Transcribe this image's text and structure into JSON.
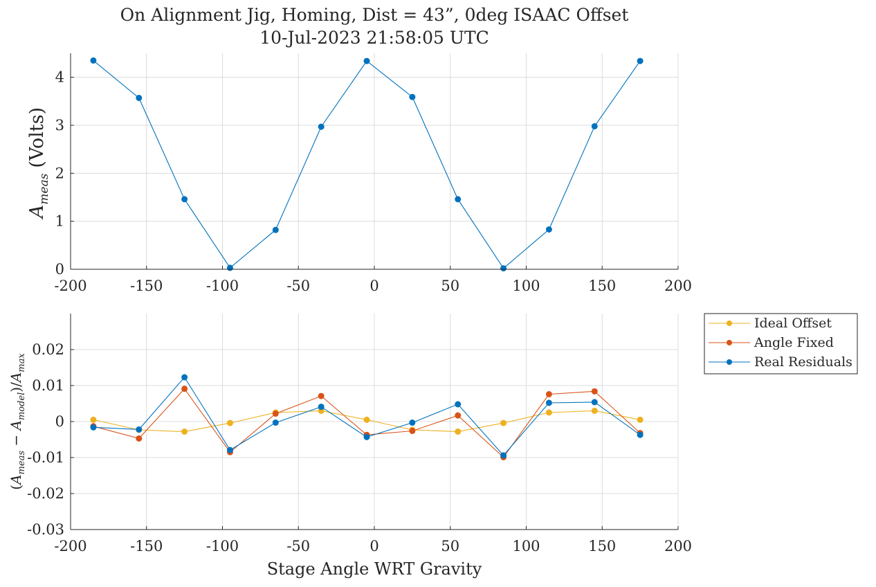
{
  "title_line1": "On Alignment Jig, Homing, Dist = 43”, 0deg ISAAC Offset",
  "title_line2": "10-Jul-2023 21:58:05 UTC",
  "chart_data": [
    {
      "type": "line",
      "ylabel": "A_meas (Volts)",
      "ylabel_main": "A",
      "ylabel_sub": "meas",
      "ylabel_unit": "(Volts)",
      "xlim": [
        -200,
        200
      ],
      "ylim": [
        0,
        4.5
      ],
      "xticks": [
        -200,
        -150,
        -100,
        -50,
        0,
        50,
        100,
        150,
        200
      ],
      "xtick_labels": [
        "-200",
        "-150",
        "-100",
        "-50",
        "0",
        "50",
        "100",
        "150",
        "200"
      ],
      "yticks": [
        0,
        1,
        2,
        3,
        4
      ],
      "ytick_labels": [
        "0",
        "1",
        "2",
        "3",
        "4"
      ],
      "grid": true,
      "series": [
        {
          "color": "#0072BD",
          "x": [
            -185,
            -155,
            -125,
            -95,
            -65,
            -35,
            -5,
            25,
            55,
            85,
            115,
            145,
            175
          ],
          "y": [
            4.35,
            3.57,
            1.46,
            0.03,
            0.82,
            2.97,
            4.34,
            3.59,
            1.46,
            0.02,
            0.83,
            2.98,
            4.34
          ]
        }
      ]
    },
    {
      "type": "line",
      "xlabel": "Stage Angle WRT Gravity",
      "ylabel": "(A_meas − A_model)/A_max",
      "xlim": [
        -200,
        200
      ],
      "ylim": [
        -0.03,
        0.03
      ],
      "xticks": [
        -200,
        -150,
        -100,
        -50,
        0,
        50,
        100,
        150,
        200
      ],
      "xtick_labels": [
        "-200",
        "-150",
        "-100",
        "-50",
        "0",
        "50",
        "100",
        "150",
        "200"
      ],
      "yticks": [
        -0.03,
        -0.02,
        -0.01,
        0,
        0.01,
        0.02
      ],
      "ytick_labels": [
        "-0.03",
        "-0.02",
        "-0.01",
        "0",
        "0.01",
        "0.02"
      ],
      "grid": true,
      "legend_position": "outside top-right",
      "series": [
        {
          "name": "Ideal Offset",
          "color": "#EDB120",
          "x": [
            -185,
            -155,
            -125,
            -95,
            -65,
            -35,
            -5,
            25,
            55,
            85,
            115,
            145,
            175
          ],
          "y": [
            0.0005,
            -0.0023,
            -0.0028,
            -0.0004,
            0.0025,
            0.003,
            0.0005,
            -0.0023,
            -0.0028,
            -0.0004,
            0.0025,
            0.003,
            0.0005
          ]
        },
        {
          "name": "Angle Fixed",
          "color": "#D95319",
          "x": [
            -185,
            -155,
            -125,
            -95,
            -65,
            -35,
            -5,
            25,
            55,
            85,
            115,
            145,
            175
          ],
          "y": [
            -0.0013,
            -0.0047,
            0.0091,
            -0.0085,
            0.0022,
            0.0071,
            -0.0037,
            -0.0026,
            0.0017,
            -0.0099,
            0.0076,
            0.0084,
            -0.0032
          ]
        },
        {
          "name": "Real Residuals",
          "color": "#0072BD",
          "x": [
            -185,
            -155,
            -125,
            -95,
            -65,
            -35,
            -5,
            25,
            55,
            85,
            115,
            145,
            175
          ],
          "y": [
            -0.0016,
            -0.0022,
            0.0123,
            -0.0079,
            -0.0003,
            0.0041,
            -0.0043,
            -0.0003,
            0.0048,
            -0.0094,
            0.0052,
            0.0054,
            -0.0037
          ]
        }
      ]
    }
  ]
}
